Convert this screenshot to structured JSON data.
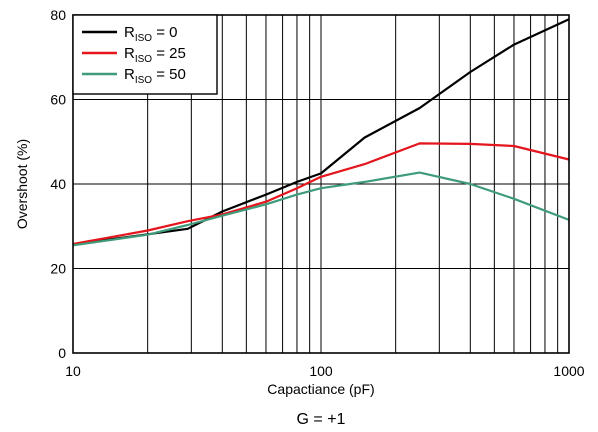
{
  "chart_data": {
    "type": "line",
    "xlabel": "Capactiance (pF)",
    "ylabel": "Overshoot (%)",
    "xscale": "log",
    "xlim": [
      10,
      1000
    ],
    "ylim": [
      0,
      80
    ],
    "grid": true,
    "legend_position": "top-left",
    "x_tick_labels": [
      "10",
      "100",
      "1000"
    ],
    "y_tick_labels": [
      "0",
      "20",
      "40",
      "60",
      "80"
    ],
    "footer": "G = +1",
    "series": [
      {
        "name": "R_ISO = 0",
        "legend_main": "R",
        "legend_sub": "ISO",
        "legend_rest": " = 0",
        "color": "#000000",
        "x": [
          10,
          20,
          29,
          40,
          60,
          80,
          100,
          150,
          250,
          400,
          600,
          1000
        ],
        "y": [
          25.7,
          28.1,
          29.4,
          33.5,
          37.5,
          40.5,
          42.5,
          51,
          58,
          66.5,
          73,
          79
        ]
      },
      {
        "name": "R_ISO = 25",
        "legend_main": "R",
        "legend_sub": "ISO",
        "legend_rest": " = 25",
        "color": "#e4151c",
        "x": [
          10,
          20,
          29,
          40,
          60,
          80,
          100,
          150,
          250,
          400,
          600,
          1000
        ],
        "y": [
          25.8,
          29,
          31.2,
          32.8,
          35.8,
          39,
          41.7,
          44.7,
          49.6,
          49.5,
          49,
          45.8
        ]
      },
      {
        "name": "R_ISO = 50",
        "legend_main": "R",
        "legend_sub": "ISO",
        "legend_rest": " = 50",
        "color": "#3f9b7a",
        "x": [
          10,
          20,
          29,
          40,
          60,
          80,
          100,
          150,
          250,
          400,
          600,
          1000
        ],
        "y": [
          25.5,
          28,
          30.3,
          32.5,
          35.2,
          37.5,
          39,
          40.5,
          42.7,
          40,
          36.5,
          31.5
        ]
      }
    ]
  }
}
